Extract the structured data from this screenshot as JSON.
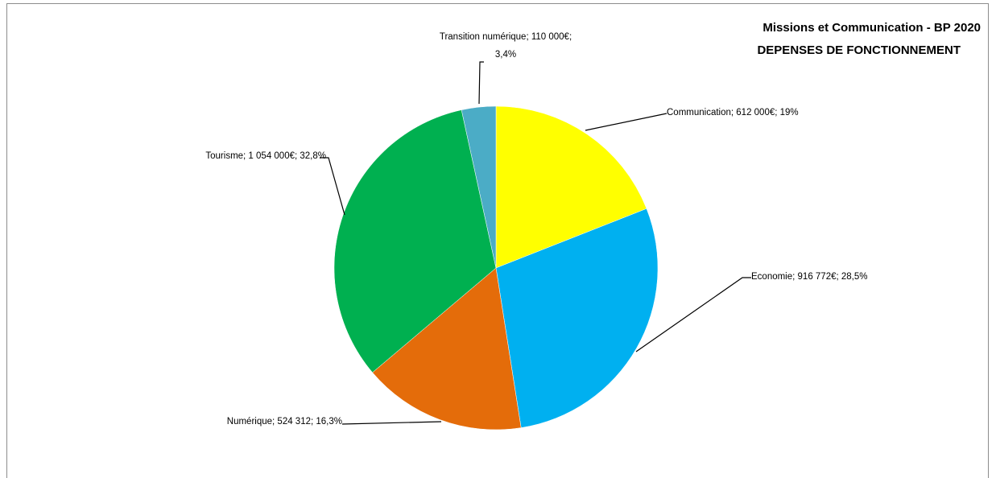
{
  "chart_data": {
    "type": "pie",
    "title_lines": [
      "Missions et Communication  -  BP 2020",
      "DEPENSES DE FONCTIONNEMENT"
    ],
    "slices": [
      {
        "name": "Communication",
        "value": 612000,
        "percent": "19%",
        "color": "#FFFF00",
        "label": "Communication; 612 000€; 19%"
      },
      {
        "name": "Economie",
        "value": 916772,
        "percent": "28,5%",
        "color": "#00B0F0",
        "label": "Economie; 916 772€; 28,5%"
      },
      {
        "name": "Numérique",
        "value": 524312,
        "percent": "16,3%",
        "color": "#E46C0A",
        "label": "Numérique; 524 312; 16,3%"
      },
      {
        "name": "Tourisme",
        "value": 1054000,
        "percent": "32,8%",
        "color": "#00B050",
        "label": "Tourisme; 1 054 000€; 32,8%"
      },
      {
        "name": "Transition numérique",
        "value": 110000,
        "percent": "3,4%",
        "color": "#4BACC6",
        "label_lines": [
          "Transition numérique; 110 000€;",
          "3,4%"
        ]
      }
    ]
  }
}
